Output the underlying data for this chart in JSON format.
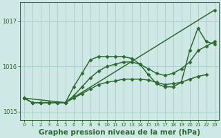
{
  "lines": [
    {
      "x": [
        0,
        5,
        23
      ],
      "y": [
        1015.3,
        1015.2,
        1017.25
      ],
      "color": "#2d6a2d",
      "lw": 1.1,
      "marker": "D",
      "ms": 2.5
    },
    {
      "x": [
        1,
        2,
        3,
        4,
        5,
        6,
        7,
        8,
        9,
        10,
        11,
        12,
        13,
        14,
        15,
        16,
        17,
        18,
        19,
        20,
        21,
        22,
        23
      ],
      "y": [
        1015.2,
        1015.2,
        1015.2,
        1015.2,
        1015.2,
        1015.55,
        1015.85,
        1016.15,
        1016.22,
        1016.22,
        1016.22,
        1016.22,
        1016.18,
        1016.05,
        1015.82,
        1015.62,
        1015.55,
        1015.55,
        1015.65,
        1016.35,
        1016.85,
        1016.55,
        1016.5
      ],
      "color": "#2d6a2d",
      "lw": 1.1,
      "marker": "D",
      "ms": 2.5
    },
    {
      "x": [
        0,
        1,
        2,
        3,
        4,
        5,
        6,
        7,
        8,
        9,
        10,
        11,
        12,
        13,
        14,
        15,
        16,
        17,
        18,
        19,
        20,
        21,
        22,
        23
      ],
      "y": [
        1015.3,
        1015.2,
        1015.2,
        1015.2,
        1015.2,
        1015.2,
        1015.35,
        1015.55,
        1015.75,
        1015.9,
        1016.0,
        1016.05,
        1016.1,
        1016.1,
        1016.05,
        1015.95,
        1015.85,
        1015.8,
        1015.85,
        1015.95,
        1016.1,
        1016.35,
        1016.45,
        1016.55
      ],
      "color": "#2d6a2d",
      "lw": 1.1,
      "marker": "D",
      "ms": 2.5
    },
    {
      "x": [
        0,
        1,
        2,
        3,
        4,
        5,
        6,
        7,
        8,
        9,
        10,
        11,
        12,
        13,
        14,
        15,
        16,
        17,
        18,
        19,
        20,
        21,
        22
      ],
      "y": [
        1015.3,
        1015.2,
        1015.2,
        1015.2,
        1015.2,
        1015.2,
        1015.3,
        1015.4,
        1015.5,
        1015.6,
        1015.65,
        1015.68,
        1015.72,
        1015.72,
        1015.72,
        1015.7,
        1015.65,
        1015.6,
        1015.62,
        1015.65,
        1015.72,
        1015.78,
        1015.82
      ],
      "color": "#2d6a2d",
      "lw": 1.1,
      "marker": "D",
      "ms": 2.5
    }
  ],
  "xlim": [
    -0.5,
    23.5
  ],
  "ylim": [
    1014.82,
    1017.42
  ],
  "yticks": [
    1015,
    1016,
    1017
  ],
  "xticks": [
    0,
    1,
    2,
    3,
    4,
    5,
    6,
    7,
    8,
    9,
    10,
    11,
    12,
    13,
    14,
    15,
    16,
    17,
    18,
    19,
    20,
    21,
    22,
    23
  ],
  "xlabel": "Graphe pression niveau de la mer (hPa)",
  "bg_color": "#cde8e5",
  "grid_color": "#a0c8c4",
  "line_color": "#2d6a2d",
  "tick_color": "#2d6a2d",
  "label_color": "#2d6a2d",
  "axis_color": "#2d6a2d",
  "xlabel_fontsize": 7.5,
  "xlabel_fontweight": "bold"
}
